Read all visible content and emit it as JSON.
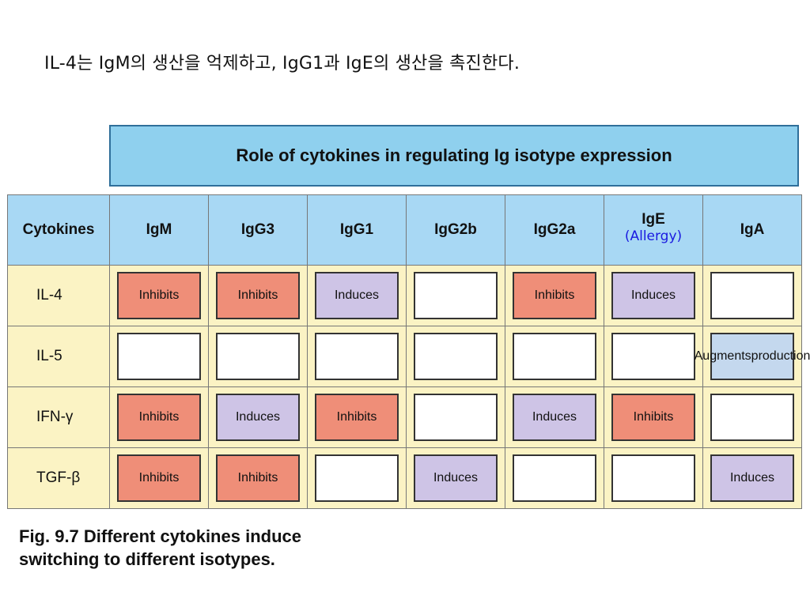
{
  "heading": "IL-4는 IgM의 생산을 억제하고, IgG1과 IgE의 생산을 촉진한다.",
  "table": {
    "title": "Role of cytokines in regulating Ig isotype expression",
    "header": {
      "corner": "Cytokines",
      "columns": [
        "IgM",
        "IgG3",
        "IgG1",
        "IgG2b",
        "IgG2a",
        "IgE",
        "IgA"
      ],
      "annotation": "(Allergy)"
    },
    "rows": [
      {
        "label": "IL-4",
        "cells": [
          "Inhibits",
          "Inhibits",
          "Induces",
          "",
          "Inhibits",
          "Induces",
          ""
        ]
      },
      {
        "label": "IL-5",
        "cells": [
          "",
          "",
          "",
          "",
          "",
          "",
          "Augments production"
        ]
      },
      {
        "label": "IFN-γ",
        "cells": [
          "Inhibits",
          "Induces",
          "Inhibits",
          "",
          "Induces",
          "Inhibits",
          ""
        ]
      },
      {
        "label": "TGF-β",
        "cells": [
          "Inhibits",
          "Inhibits",
          "",
          "Induces",
          "",
          "",
          "Induces"
        ]
      }
    ]
  },
  "caption": {
    "line1": "Fig. 9.7 Different cytokines induce",
    "line2": "switching to different isotypes."
  },
  "colors": {
    "title_bg": "#8fd0ee",
    "header_bg": "#a8d8f4",
    "body_bg": "#fbf3c4",
    "inhibits": "#ef8e78",
    "induces": "#cec4e6",
    "augments": "#c4d8ee",
    "annotation": "#1a1ae0"
  }
}
